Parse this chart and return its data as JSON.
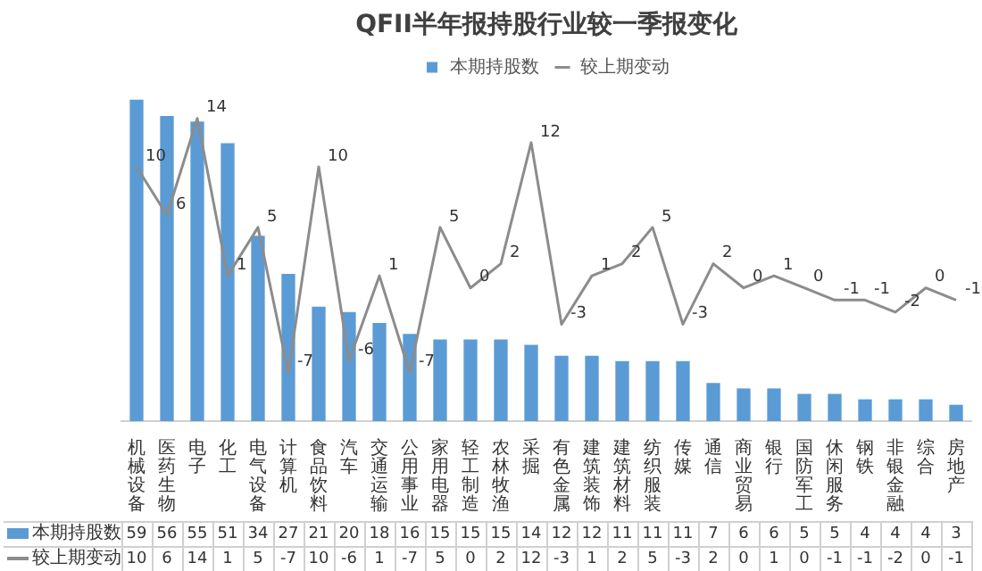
{
  "chart_data": {
    "type": "bar",
    "title": "QFII半年报持股行业较一季报变化",
    "categories": [
      "机械设备",
      "医药生物",
      "电子",
      "化工",
      "电气设备",
      "计算机",
      "食品饮料",
      "汽车",
      "交通运输",
      "公用事业",
      "家用电器",
      "轻工制造",
      "农林牧渔",
      "采掘",
      "有色金属",
      "建筑装饰",
      "建筑材料",
      "纺织服装",
      "传媒",
      "通信",
      "商业贸易",
      "银行",
      "国防军工",
      "休闲服务",
      "钢铁",
      "非银金融",
      "综合",
      "房地产"
    ],
    "series": [
      {
        "name": "本期持股数",
        "color": "#5b9bd5",
        "values": [
          59,
          56,
          55,
          51,
          34,
          27,
          21,
          20,
          18,
          16,
          15,
          15,
          15,
          14,
          12,
          12,
          11,
          11,
          11,
          7,
          6,
          6,
          5,
          5,
          4,
          4,
          4,
          3
        ]
      },
      {
        "name": "较上期变动",
        "type": "line",
        "axis": "y2",
        "color": "#8c8c8c",
        "values": [
          10,
          6,
          14,
          1,
          5,
          -7,
          10,
          -6,
          1,
          -7,
          5,
          0,
          2,
          12,
          -3,
          1,
          2,
          5,
          -3,
          2,
          0,
          1,
          0,
          -1,
          -1,
          -2,
          0,
          -1
        ]
      }
    ],
    "annotations": [
      "10",
      "6",
      "14",
      "1",
      "5",
      "-7",
      "10",
      "-6",
      "1",
      "-7",
      "5",
      "0",
      "2",
      "12",
      "-3",
      "1",
      "2",
      "5",
      "-3",
      "2",
      "0",
      "1",
      "0",
      "-1",
      "-1",
      "-2",
      "0",
      "-1"
    ],
    "ylim": [
      0,
      60
    ],
    "y2lim": [
      -11,
      16
    ],
    "tick_labels": "x",
    "legend": "top",
    "marker": "none",
    "line_style": "solid",
    "data_labels": true
  }
}
